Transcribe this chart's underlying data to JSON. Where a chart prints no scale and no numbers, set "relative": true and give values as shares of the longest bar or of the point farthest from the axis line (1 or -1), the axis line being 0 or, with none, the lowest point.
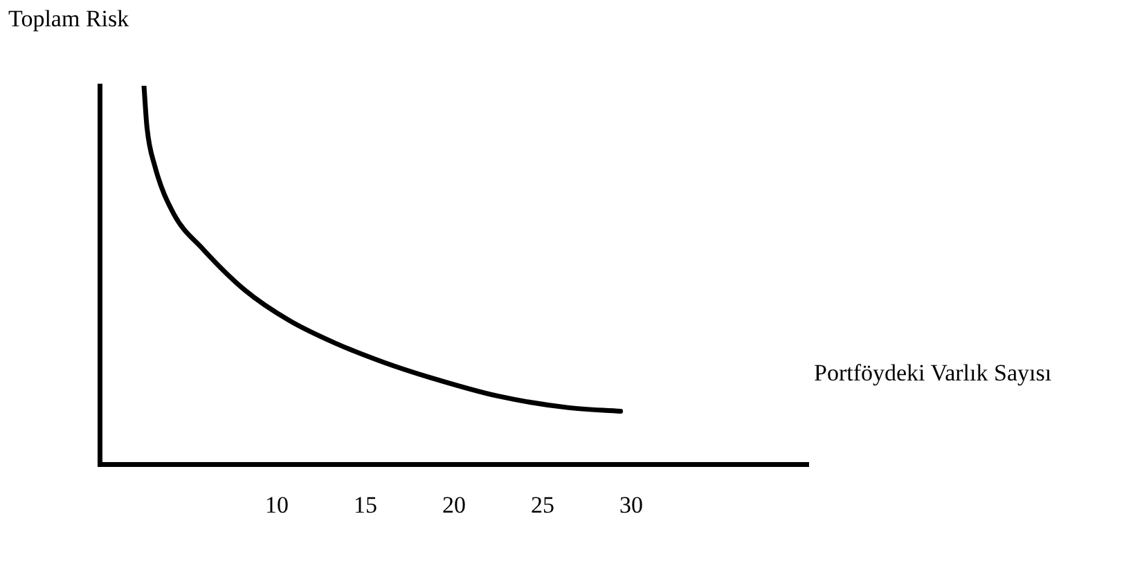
{
  "chart_data": {
    "type": "line",
    "ylabel": "Toplam Risk",
    "xlabel": "Portföydeki Varlık Sayısı",
    "relative": true,
    "xlim": [
      0,
      40
    ],
    "xticks": [
      10,
      15,
      20,
      25,
      30
    ],
    "x": [
      2.5,
      2.67,
      3.1,
      4.2,
      5.8,
      8.2,
      10.7,
      13.3,
      16.0,
      18.6,
      22.5,
      26.4,
      29.4
    ],
    "series": [
      {
        "color": "#000000",
        "values": [
          1,
          0.89,
          0.79,
          0.66,
          0.57,
          0.46,
          0.38,
          0.32,
          0.27,
          0.23,
          0.18,
          0.15,
          0.14
        ]
      }
    ],
    "grid": false,
    "legend": false,
    "marker": "none"
  }
}
